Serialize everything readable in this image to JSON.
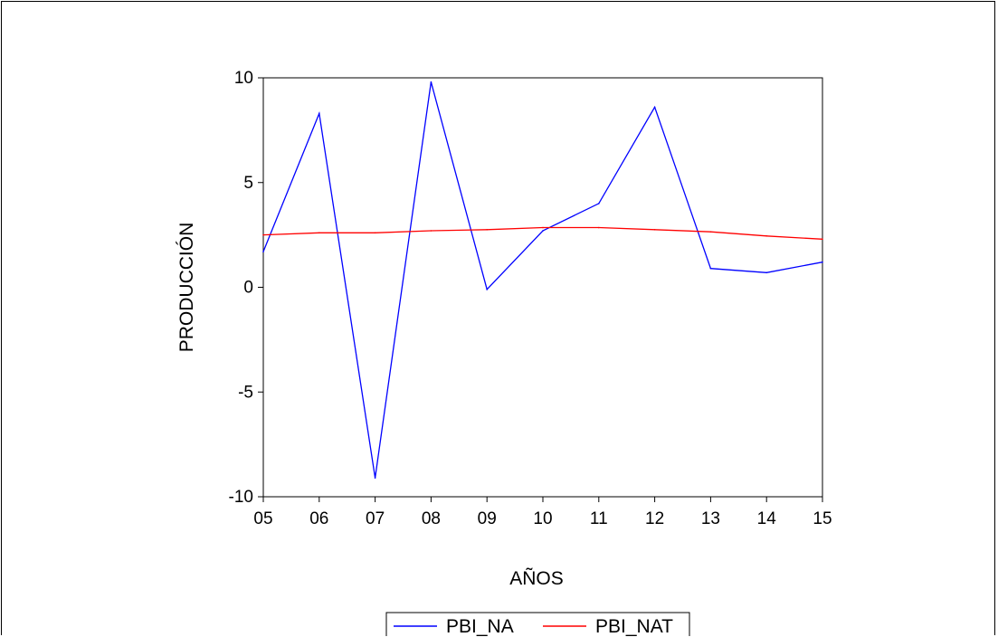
{
  "chart_data": {
    "type": "line",
    "xlabel": "AÑOS",
    "ylabel": "PRODUCCIÓN",
    "categories": [
      "05",
      "06",
      "07",
      "08",
      "09",
      "10",
      "11",
      "12",
      "13",
      "14",
      "15"
    ],
    "yticks": [
      "10",
      "5",
      "0",
      "-5",
      "-10"
    ],
    "ylim": [
      -10,
      10
    ],
    "grid": false,
    "legend_position": "bottom-center",
    "series": [
      {
        "name": "PBI_NA",
        "color": "#0000ff",
        "values": [
          1.7,
          8.3,
          -9.1,
          9.8,
          -0.1,
          2.7,
          4.0,
          8.6,
          0.9,
          0.7,
          1.2
        ]
      },
      {
        "name": "PBI_NAT",
        "color": "#ff0000",
        "values": [
          2.5,
          2.6,
          2.6,
          2.7,
          2.75,
          2.85,
          2.85,
          2.75,
          2.65,
          2.45,
          2.3
        ]
      }
    ]
  }
}
